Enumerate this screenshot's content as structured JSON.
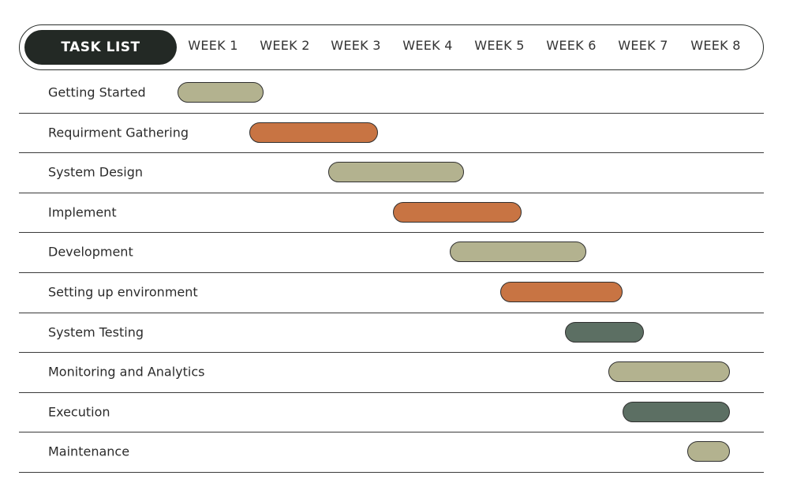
{
  "chart_data": {
    "type": "gantt",
    "title": "TASK LIST",
    "weeks": [
      "WEEK 1",
      "WEEK 2",
      "WEEK 3",
      "WEEK 4",
      "WEEK 5",
      "WEEK 6",
      "WEEK 7",
      "WEEK 8"
    ],
    "x_unit": "week",
    "xlim": [
      0.5,
      8.5
    ],
    "colors": {
      "sage": "#b3b28f",
      "orange": "#c87443",
      "slate": "#5c6f63",
      "header": "#232925"
    },
    "tasks": [
      {
        "name": "Getting Started",
        "start": 0.5,
        "end": 1.7,
        "color": "sage"
      },
      {
        "name": "Requirment Gathering",
        "start": 1.5,
        "end": 3.3,
        "color": "orange"
      },
      {
        "name": "System Design",
        "start": 2.6,
        "end": 4.5,
        "color": "sage"
      },
      {
        "name": "Implement",
        "start": 3.5,
        "end": 5.3,
        "color": "orange"
      },
      {
        "name": "Development",
        "start": 4.3,
        "end": 6.2,
        "color": "sage"
      },
      {
        "name": "Setting up environment",
        "start": 5.0,
        "end": 6.7,
        "color": "orange"
      },
      {
        "name": "System Testing",
        "start": 5.9,
        "end": 7.0,
        "color": "slate"
      },
      {
        "name": "Monitoring and Analytics",
        "start": 6.5,
        "end": 8.2,
        "color": "sage"
      },
      {
        "name": "Execution",
        "start": 6.7,
        "end": 8.2,
        "color": "slate"
      },
      {
        "name": "Maintenance",
        "start": 7.6,
        "end": 8.2,
        "color": "sage"
      }
    ]
  }
}
